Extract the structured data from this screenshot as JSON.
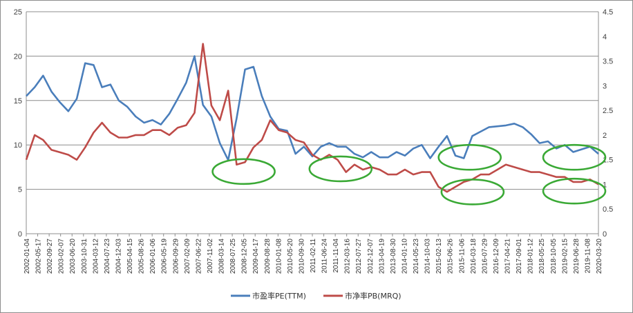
{
  "chart_data": {
    "type": "line",
    "title": "",
    "xlabel": "",
    "ylabel": "",
    "ylim": [
      0,
      25
    ],
    "ylim_secondary": [
      0,
      4.5
    ],
    "yticks": [
      "0",
      "5",
      "10",
      "15",
      "20",
      "25"
    ],
    "yticks_secondary": [
      "0",
      "0.5",
      "1",
      "1.5",
      "2",
      "2.5",
      "3",
      "3.5",
      "4",
      "4.5"
    ],
    "grid": "horizontal",
    "legend_position": "bottom",
    "x_labels": [
      "2002-01-04",
      "2002-05-17",
      "2002-09-27",
      "2003-02-07",
      "2003-06-20",
      "2003-10-31",
      "2004-03-12",
      "2004-07-23",
      "2004-12-03",
      "2005-04-15",
      "2005-08-26",
      "2006-01-06",
      "2006-05-19",
      "2006-09-29",
      "2007-02-09",
      "2007-06-22",
      "2007-11-02",
      "2008-03-14",
      "2008-07-25",
      "2008-12-05",
      "2009-04-17",
      "2009-08-28",
      "2010-01-08",
      "2010-05-20",
      "2010-09-30",
      "2011-02-11",
      "2011-06-24",
      "2011-11-04",
      "2012-03-16",
      "2012-07-27",
      "2012-12-07",
      "2013-04-19",
      "2013-08-30",
      "2014-01-10",
      "2014-05-23",
      "2014-10-03",
      "2015-02-13",
      "2015-06-26",
      "2015-11-06",
      "2016-03-18",
      "2016-07-29",
      "2016-12-09",
      "2017-04-21",
      "2017-09-01",
      "2018-01-12",
      "2018-05-25",
      "2018-10-05",
      "2019-02-15",
      "2019-06-28",
      "2019-11-08",
      "2020-03-20"
    ],
    "series": [
      {
        "name": "市盈率PE(TTM)",
        "axis": "left",
        "color": "#4a7ebb",
        "values": [
          15.5,
          16.5,
          17.8,
          16.0,
          14.8,
          13.8,
          15.2,
          19.2,
          19.0,
          16.5,
          16.8,
          15.0,
          14.3,
          13.2,
          12.5,
          12.8,
          12.3,
          13.5,
          15.2,
          17.0,
          20.0,
          14.5,
          13.2,
          10.2,
          8.3,
          13.0,
          18.5,
          18.8,
          15.5,
          13.2,
          11.8,
          11.6,
          9.0,
          9.8,
          8.7,
          9.8,
          10.2,
          9.8,
          9.8,
          9.0,
          8.6,
          9.2,
          8.6,
          8.6,
          9.2,
          8.8,
          9.6,
          10.0,
          8.5,
          9.8,
          11.0,
          8.8,
          8.5,
          11.0,
          11.5,
          12.0,
          12.1,
          12.2,
          12.4,
          12.0,
          11.2,
          10.2,
          10.4,
          9.6,
          10.0,
          9.2,
          9.5,
          9.8,
          9.0
        ]
      },
      {
        "name": "市净率PB(MRQ)",
        "axis": "right",
        "color": "#be4b48",
        "values": [
          1.5,
          2.0,
          1.9,
          1.7,
          1.65,
          1.6,
          1.5,
          1.75,
          2.05,
          2.25,
          2.05,
          1.95,
          1.95,
          2.0,
          2.0,
          2.1,
          2.1,
          2.0,
          2.15,
          2.2,
          2.45,
          3.85,
          2.6,
          2.3,
          2.9,
          1.4,
          1.45,
          1.75,
          1.9,
          2.3,
          2.1,
          2.05,
          1.9,
          1.85,
          1.6,
          1.5,
          1.6,
          1.5,
          1.25,
          1.4,
          1.3,
          1.35,
          1.3,
          1.2,
          1.2,
          1.3,
          1.2,
          1.25,
          1.25,
          0.95,
          0.85,
          0.95,
          1.05,
          1.1,
          1.2,
          1.2,
          1.3,
          1.4,
          1.35,
          1.3,
          1.25,
          1.25,
          1.2,
          1.15,
          1.15,
          1.05,
          1.05,
          1.1,
          1.0
        ]
      }
    ],
    "annotations": [
      {
        "shape": "ellipse",
        "color": "#3aa935",
        "date": "2008-12-05",
        "level": 7.0
      },
      {
        "shape": "ellipse",
        "color": "#3aa935",
        "date": "2012-01-05",
        "level": 7.3
      },
      {
        "shape": "ellipse",
        "color": "#3aa935",
        "date": "2016-02-15",
        "level": 8.6
      },
      {
        "shape": "ellipse",
        "color": "#3aa935",
        "date": "2016-03-18",
        "level": 4.7
      },
      {
        "shape": "ellipse",
        "color": "#3aa935",
        "date": "2020-01-20",
        "level": 8.6
      },
      {
        "shape": "ellipse",
        "color": "#3aa935",
        "date": "2020-01-20",
        "level": 4.8
      }
    ]
  }
}
